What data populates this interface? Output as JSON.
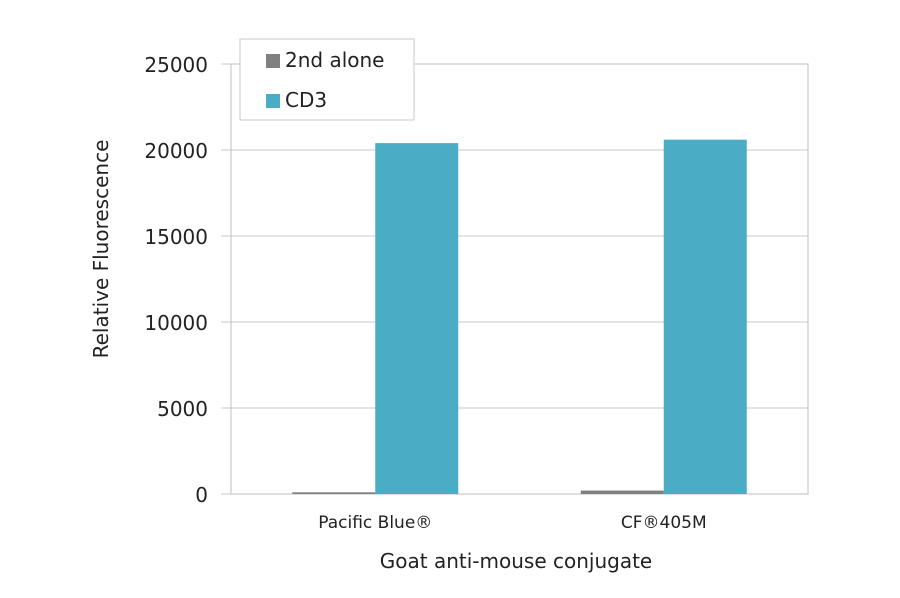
{
  "chart_data": {
    "type": "bar",
    "title": "",
    "xlabel": "Goat anti-mouse conjugate",
    "ylabel": "Relative Fluorescence",
    "ylim": [
      0,
      25000
    ],
    "yticks": [
      "0",
      "5000",
      "10000",
      "15000",
      "20000",
      "25000"
    ],
    "grid": true,
    "legend": "top-left",
    "categories": [
      "Pacific Blue®",
      "CF®405M"
    ],
    "series": [
      {
        "name": "2nd alone",
        "values": [
          100,
          200
        ],
        "color": "#808080"
      },
      {
        "name": "CD3",
        "values": [
          20400,
          20600
        ],
        "color": "#4bacc6"
      }
    ]
  }
}
